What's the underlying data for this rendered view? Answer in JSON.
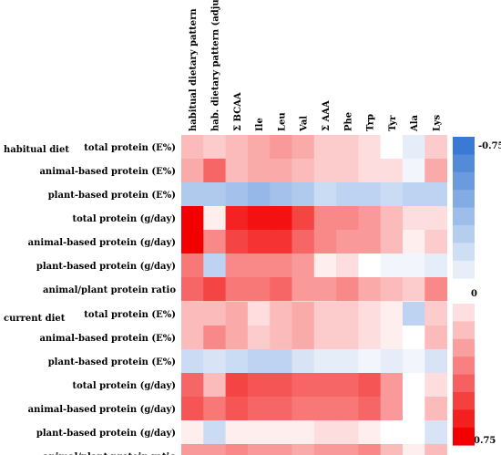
{
  "chart_data": [
    {
      "type": "heatmap",
      "section_label": "habitual diet",
      "columns": [
        "habitual dietary pattern",
        "hab. dietary pattern (adjusted)",
        "Σ BCAA",
        "Ile",
        "Leu",
        "Val",
        "Σ AAA",
        "Phe",
        "Trp",
        "Tyr",
        "Ala",
        "Lys"
      ],
      "rows": [
        "total protein (E%)",
        "animal-based protein (E%)",
        "plant-based protein (E%)",
        "total protein (g/day)",
        "animal-based protein (g/day)",
        "plant-based protein (g/day)",
        "animal/plant protein ratio"
      ],
      "values": [
        [
          0.2,
          0.15,
          0.2,
          0.25,
          0.3,
          0.25,
          0.15,
          0.15,
          0.1,
          0.0,
          -0.1,
          0.15
        ],
        [
          0.25,
          0.45,
          0.2,
          0.25,
          0.25,
          0.2,
          0.15,
          0.15,
          0.1,
          0.1,
          -0.05,
          0.25
        ],
        [
          -0.3,
          -0.3,
          -0.35,
          -0.4,
          -0.35,
          -0.3,
          -0.2,
          -0.25,
          -0.25,
          -0.2,
          -0.25,
          -0.25
        ],
        [
          0.75,
          0.05,
          0.65,
          0.7,
          0.7,
          0.55,
          0.35,
          0.35,
          0.3,
          0.2,
          0.1,
          0.1
        ],
        [
          0.75,
          0.35,
          0.55,
          0.6,
          0.6,
          0.45,
          0.35,
          0.3,
          0.3,
          0.2,
          0.05,
          0.15
        ],
        [
          0.4,
          -0.25,
          0.35,
          0.35,
          0.35,
          0.3,
          0.05,
          0.1,
          0.0,
          -0.05,
          -0.05,
          -0.1
        ],
        [
          0.45,
          0.55,
          0.4,
          0.4,
          0.45,
          0.3,
          0.3,
          0.35,
          0.25,
          0.2,
          0.15,
          0.35
        ]
      ]
    },
    {
      "type": "heatmap",
      "section_label": "current diet",
      "columns": [
        "habitual dietary pattern",
        "hab. dietary pattern (adjusted)",
        "Σ BCAA",
        "Ile",
        "Leu",
        "Val",
        "Σ AAA",
        "Phe",
        "Trp",
        "Tyr",
        "Ala",
        "Lys"
      ],
      "rows": [
        "total protein (E%)",
        "animal-based protein (E%)",
        "plant-based protein (E%)",
        "total protein (g/day)",
        "animal-based protein (g/day)",
        "plant-based protein (g/day)",
        "animal/plant protein ratio"
      ],
      "values": [
        [
          0.2,
          0.2,
          0.25,
          0.1,
          0.2,
          0.25,
          0.15,
          0.15,
          0.1,
          0.05,
          -0.25,
          0.15
        ],
        [
          0.2,
          0.35,
          0.25,
          0.15,
          0.2,
          0.25,
          0.15,
          0.15,
          0.1,
          0.05,
          0.0,
          0.2
        ],
        [
          -0.2,
          -0.15,
          -0.2,
          -0.25,
          -0.25,
          -0.15,
          -0.1,
          -0.1,
          -0.05,
          -0.1,
          -0.05,
          -0.15
        ],
        [
          0.45,
          0.2,
          0.55,
          0.5,
          0.5,
          0.45,
          0.45,
          0.45,
          0.5,
          0.3,
          0.0,
          0.1
        ],
        [
          0.5,
          0.4,
          0.5,
          0.45,
          0.45,
          0.4,
          0.4,
          0.4,
          0.45,
          0.3,
          0.0,
          0.2
        ],
        [
          0.05,
          -0.2,
          0.05,
          0.05,
          0.05,
          0.05,
          0.1,
          0.1,
          0.05,
          0.0,
          0.0,
          -0.15
        ],
        [
          0.3,
          0.3,
          0.35,
          0.3,
          0.3,
          0.25,
          0.3,
          0.3,
          0.35,
          0.2,
          0.05,
          0.2
        ]
      ]
    }
  ],
  "colorbar": {
    "top_label": "-0.75",
    "middle_label": "0",
    "bottom_label": "0.75",
    "range": [
      -0.75,
      0.75
    ],
    "negative_color": "#3a7ad4",
    "positive_color": "#f20000",
    "neutral_color": "#ffffff"
  }
}
